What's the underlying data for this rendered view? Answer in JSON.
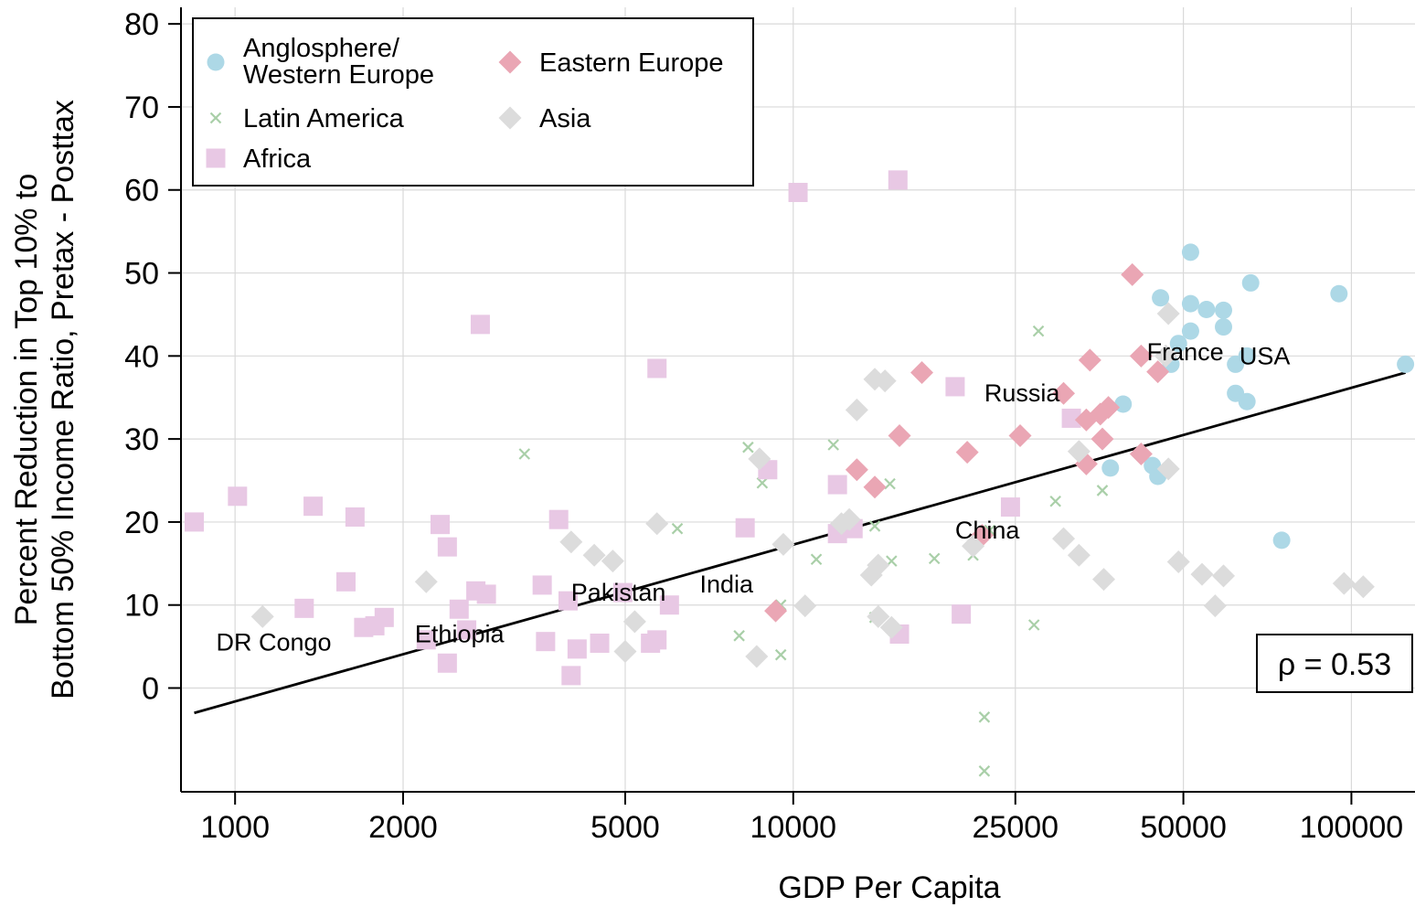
{
  "chart_data": {
    "type": "scatter",
    "title": "",
    "xlabel": "GDP Per Capita",
    "ylabel_lines": [
      "Percent Reduction in Top 10% to",
      "Bottom 50% Income Ratio, Pretax - Posttax"
    ],
    "x_scale": "log",
    "xlim": [
      800,
      130000
    ],
    "ylim": [
      -12.5,
      82
    ],
    "x_ticks": [
      1000,
      2000,
      5000,
      10000,
      25000,
      50000,
      100000
    ],
    "x_tick_labels": [
      "1000",
      "2000",
      "5000",
      "10000",
      "25000",
      "50000",
      "100000"
    ],
    "y_ticks": [
      0,
      10,
      20,
      30,
      40,
      50,
      60,
      70,
      80
    ],
    "y_tick_labels": [
      "0",
      "10",
      "20",
      "30",
      "40",
      "50",
      "60",
      "70",
      "80"
    ],
    "grid": true,
    "legend_position": "top-left",
    "series": [
      {
        "name": "Anglosphere/\nWestern Europe",
        "legend_lines": [
          "Anglosphere/",
          "Western Europe"
        ],
        "marker": "circle",
        "color": "#add8e6",
        "points": [
          [
            51500,
            52.5
          ],
          [
            51500,
            46.3
          ],
          [
            55000,
            45.6
          ],
          [
            45500,
            47
          ],
          [
            59000,
            45.5
          ],
          [
            66000,
            48.8
          ],
          [
            95000,
            47.5
          ],
          [
            59000,
            43.5
          ],
          [
            51500,
            43
          ],
          [
            49000,
            41.5
          ],
          [
            47500,
            39
          ],
          [
            62000,
            39
          ],
          [
            65000,
            40
          ],
          [
            125000,
            39
          ],
          [
            62000,
            35.5
          ],
          [
            65000,
            34.5
          ],
          [
            39000,
            34.2
          ],
          [
            37000,
            26.5
          ],
          [
            44000,
            26.8
          ],
          [
            45000,
            25.5
          ],
          [
            75000,
            17.8
          ]
        ]
      },
      {
        "name": "Latin America",
        "marker": "x",
        "color": "#a9cfa8",
        "points": [
          [
            3300,
            28.2
          ],
          [
            8300,
            29
          ],
          [
            8800,
            24.7
          ],
          [
            11800,
            29.3
          ],
          [
            14900,
            24.6
          ],
          [
            27500,
            43
          ],
          [
            29500,
            22.5
          ],
          [
            35800,
            23.8
          ],
          [
            6200,
            19.2
          ],
          [
            14000,
            19.5
          ],
          [
            11000,
            15.5
          ],
          [
            15000,
            15.3
          ],
          [
            17900,
            15.6
          ],
          [
            21000,
            16
          ],
          [
            22500,
            19
          ],
          [
            8000,
            6.3
          ],
          [
            9500,
            4
          ],
          [
            9500,
            10
          ],
          [
            14000,
            8.5
          ],
          [
            27000,
            7.6
          ],
          [
            22000,
            -3.5
          ],
          [
            22000,
            -10
          ]
        ]
      },
      {
        "name": "Africa",
        "marker": "square",
        "color": "#e8c8e4",
        "points": [
          [
            15400,
            61.2
          ],
          [
            10200,
            59.7
          ],
          [
            2750,
            43.8
          ],
          [
            5700,
            38.5
          ],
          [
            19500,
            36.3
          ],
          [
            31500,
            32.5
          ],
          [
            9000,
            26.3
          ],
          [
            12000,
            24.5
          ],
          [
            845,
            20
          ],
          [
            1010,
            23.1
          ],
          [
            1380,
            21.9
          ],
          [
            1640,
            20.6
          ],
          [
            2330,
            19.7
          ],
          [
            3800,
            20.3
          ],
          [
            8200,
            19.3
          ],
          [
            24500,
            21.8
          ],
          [
            1580,
            12.8
          ],
          [
            2400,
            17
          ],
          [
            12000,
            18.6
          ],
          [
            12800,
            19.2
          ],
          [
            1330,
            9.6
          ],
          [
            1700,
            7.3
          ],
          [
            1780,
            7.5
          ],
          [
            1850,
            8.5
          ],
          [
            2520,
            9.5
          ],
          [
            2700,
            11.7
          ],
          [
            2820,
            11.3
          ],
          [
            3550,
            12.4
          ],
          [
            3950,
            10.5
          ],
          [
            4950,
            11.5
          ],
          [
            6000,
            10
          ],
          [
            2200,
            5.8
          ],
          [
            2400,
            3
          ],
          [
            2600,
            7
          ],
          [
            3600,
            5.6
          ],
          [
            4100,
            4.7
          ],
          [
            4500,
            5.4
          ],
          [
            4000,
            1.5
          ],
          [
            5550,
            5.4
          ],
          [
            5700,
            5.8
          ],
          [
            15500,
            6.5
          ],
          [
            20000,
            8.9
          ]
        ]
      },
      {
        "name": "Eastern Europe",
        "marker": "diamond",
        "color": "#eaa6b4",
        "points": [
          [
            40500,
            49.8
          ],
          [
            17000,
            38
          ],
          [
            34000,
            39.5
          ],
          [
            42000,
            40
          ],
          [
            45000,
            38.1
          ],
          [
            30500,
            35.5
          ],
          [
            33500,
            32.3
          ],
          [
            35500,
            33
          ],
          [
            36700,
            33.8
          ],
          [
            15500,
            30.4
          ],
          [
            25500,
            30.4
          ],
          [
            35800,
            30
          ],
          [
            13000,
            26.3
          ],
          [
            14000,
            24.2
          ],
          [
            20500,
            28.4
          ],
          [
            33500,
            27
          ],
          [
            42000,
            28.2
          ],
          [
            21800,
            18.4
          ],
          [
            9300,
            9.3
          ]
        ]
      },
      {
        "name": "Asia",
        "marker": "diamond",
        "color": "#dcdcdc",
        "points": [
          [
            47000,
            45.1
          ],
          [
            46500,
            40
          ],
          [
            14000,
            37.2
          ],
          [
            14600,
            37
          ],
          [
            13000,
            33.5
          ],
          [
            32500,
            28.5
          ],
          [
            47000,
            26.4
          ],
          [
            8700,
            27.6
          ],
          [
            5700,
            19.8
          ],
          [
            12200,
            19.8
          ],
          [
            12600,
            20.3
          ],
          [
            4000,
            17.6
          ],
          [
            4400,
            16
          ],
          [
            4750,
            15.3
          ],
          [
            9600,
            17.3
          ],
          [
            21000,
            17.1
          ],
          [
            30500,
            18
          ],
          [
            32500,
            16
          ],
          [
            36000,
            13.1
          ],
          [
            49000,
            15.2
          ],
          [
            54000,
            13.7
          ],
          [
            59000,
            13.5
          ],
          [
            57000,
            9.9
          ],
          [
            97000,
            12.6
          ],
          [
            105000,
            12.2
          ],
          [
            2200,
            12.8
          ],
          [
            1120,
            8.6
          ],
          [
            5200,
            8
          ],
          [
            5000,
            4.4
          ],
          [
            8600,
            3.8
          ],
          [
            10500,
            9.9
          ],
          [
            14200,
            8.6
          ],
          [
            15000,
            7.3
          ],
          [
            13800,
            13.6
          ],
          [
            14200,
            14.8
          ]
        ]
      }
    ],
    "trend_line": {
      "x": [
        845,
        125000
      ],
      "y": [
        -3,
        38
      ]
    },
    "annotations": [
      {
        "text": "France",
        "x": 43000,
        "y": 40.5
      },
      {
        "text": "USA",
        "x": 63000,
        "y": 40
      },
      {
        "text": "Russia",
        "x": 22000,
        "y": 35.5
      },
      {
        "text": "China",
        "x": 19500,
        "y": 19
      },
      {
        "text": "India",
        "x": 6800,
        "y": 12.5
      },
      {
        "text": "Pakistan",
        "x": 4000,
        "y": 11.5
      },
      {
        "text": "Ethiopia",
        "x": 2100,
        "y": 6.5
      },
      {
        "text": "DR Congo",
        "x": 925,
        "y": 5.5
      }
    ],
    "correlation_label": "ρ = 0.53"
  }
}
